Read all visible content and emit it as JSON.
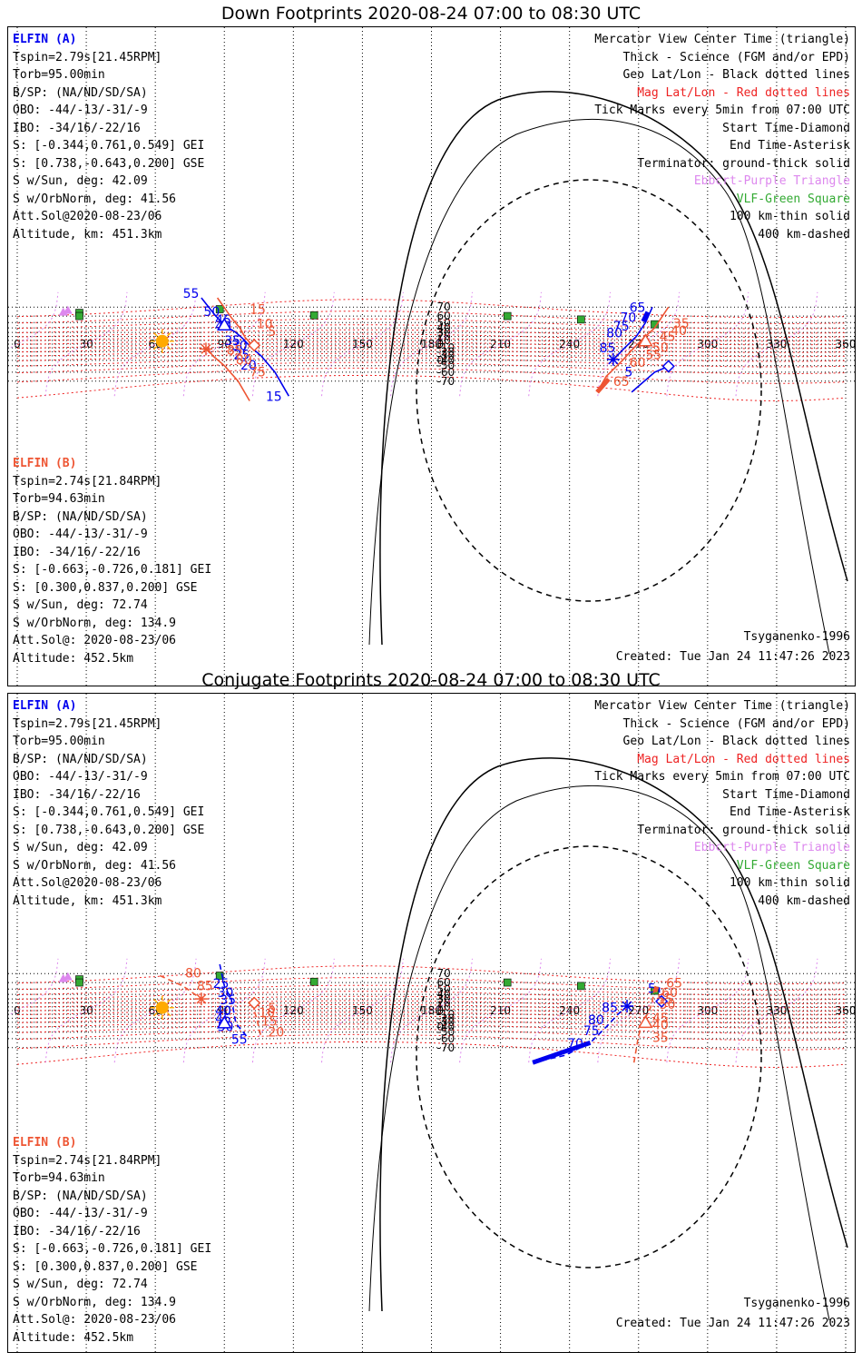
{
  "panels": [
    {
      "title": "Down Footprints 2020-08-24 07:00 to 08:30 UTC",
      "probe_a": {
        "name": "ELFIN (A)",
        "lines": [
          "Tspin=2.79s[21.45RPM]",
          "Torb=95.00min",
          "B/SP: (NA/ND/SD/SA)",
          "OBO: -44/-13/-31/-9",
          "IBO: -34/16/-22/16",
          "S: [-0.344,0.761,0.549] GEI",
          "S: [0.738,-0.643,0.200] GSE",
          "S w/Sun, deg: 42.09",
          "S w/OrbNorm, deg: 41.56",
          "Att.Sol@2020-08-23/06",
          "Altitude, km: 451.3km"
        ]
      },
      "probe_b": {
        "name": "ELFIN (B)",
        "lines": [
          "Tspin=2.74s[21.84RPM]",
          "Torb=94.63min",
          "B/SP: (NA/ND/SD/SA)",
          "OBO: -44/-13/-31/-9",
          "IBO: -34/16/-22/16",
          "S: [-0.663,-0.726,0.181] GEI",
          "S: [0.300,0.837,0.200] GSE",
          "S w/Sun, deg: 72.74",
          "S w/OrbNorm, deg: 134.9",
          "Att.Sol@: 2020-08-23/06",
          "Altitude: 452.5km"
        ]
      },
      "legend": [
        "Mercator View Center Time (triangle)",
        "Thick - Science (FGM and/or EPD)",
        "Geo Lat/Lon - Black dotted lines",
        "Mag Lat/Lon - Red dotted lines",
        "Tick Marks every 5min from 07:00 UTC",
        "Start Time-Diamond",
        "End Time-Asterisk",
        "Terminator: ground-thick solid",
        "Ebbcrt-Purple Triangle",
        "VLF-Green Square",
        "100 km-thin solid",
        "400 km-dashed"
      ],
      "model": "Tsyganenko-1996",
      "created": "Created: Tue Jan 24 11:47:26 2023"
    },
    {
      "title": "Conjugate Footprints 2020-08-24 07:00 to 08:30 UTC",
      "probe_a": {
        "name": "ELFIN (A)",
        "lines": [
          "Tspin=2.79s[21.45RPM]",
          "Torb=95.00min",
          "B/SP: (NA/ND/SD/SA)",
          "OBO: -44/-13/-31/-9",
          "IBO: -34/16/-22/16",
          "S: [-0.344,0.761,0.549] GEI",
          "S: [0.738,-0.643,0.200] GSE",
          "S w/Sun, deg: 42.09",
          "S w/OrbNorm, deg: 41.56",
          "Att.Sol@2020-08-23/06",
          "Altitude, km: 451.3km"
        ]
      },
      "probe_b": {
        "name": "ELFIN (B)",
        "lines": [
          "Tspin=2.74s[21.84RPM]",
          "Torb=94.63min",
          "B/SP: (NA/ND/SD/SA)",
          "OBO: -44/-13/-31/-9",
          "IBO: -34/16/-22/16",
          "S: [-0.663,-0.726,0.181] GEI",
          "S: [0.300,0.837,0.200] GSE",
          "S w/Sun, deg: 72.74",
          "S w/OrbNorm, deg: 134.9",
          "Att.Sol@: 2020-08-23/06",
          "Altitude: 452.5km"
        ]
      },
      "legend": [
        "Mercator View Center Time (triangle)",
        "Thick - Science (FGM and/or EPD)",
        "Geo Lat/Lon - Black dotted lines",
        "Mag Lat/Lon - Red dotted lines",
        "Tick Marks every 5min from 07:00 UTC",
        "Start Time-Diamond",
        "End Time-Asterisk",
        "Terminator: ground-thick solid",
        "Ebbcrt-Purple Triangle",
        "VLF-Green Square",
        "100 km-thin solid",
        "400 km-dashed"
      ],
      "model": "Tsyganenko-1996",
      "created": "Created: Tue Jan 24 11:47:26 2023"
    }
  ],
  "colors": {
    "elfin_a": "#0000ee",
    "elfin_b": "#ee5533",
    "terminator": "#000000",
    "mag_grid": "#ee2222",
    "ebbcrt": "#dd88ee",
    "vlf": "#33aa33",
    "sun": "#ffaa00"
  },
  "chart_data": [
    {
      "type": "scatter",
      "projection": "mercator",
      "title": "Down Footprints 2020-08-24 07:00 to 08:30 UTC",
      "xlim": [
        0,
        360
      ],
      "x_ticks": [
        0,
        30,
        60,
        90,
        120,
        150,
        180,
        210,
        240,
        270,
        300,
        330,
        360
      ],
      "y_ticks": [
        70,
        60,
        50,
        40,
        30,
        20,
        10,
        0,
        -10,
        -20,
        -30,
        -40,
        -50,
        -60,
        -70
      ],
      "sun": {
        "lon": 63,
        "lat": 8
      },
      "vlf_stations": [
        {
          "lon": 88,
          "lat": 68
        },
        {
          "lon": 27,
          "lat": 64
        },
        {
          "lon": 27,
          "lat": 60
        },
        {
          "lon": 129,
          "lat": 61
        },
        {
          "lon": 213,
          "lat": 60
        },
        {
          "lon": 245,
          "lat": 55
        },
        {
          "lon": 277,
          "lat": 47
        }
      ],
      "ebbcrt": [
        {
          "lon": 22,
          "lat": 67
        },
        {
          "lon": 20,
          "lat": 65
        }
      ],
      "series": [
        {
          "name": "ELFIN (A)",
          "line": "solid",
          "track_a": [
            {
              "lon": 80,
              "lat": 77
            },
            {
              "lon": 86,
              "lat": 61
            },
            {
              "lon": 90,
              "lat": 45
            },
            {
              "lon": 95,
              "lat": 30
            },
            {
              "lon": 98,
              "lat": 15
            },
            {
              "lon": 101,
              "lat": -5
            },
            {
              "lon": 106,
              "lat": -30
            },
            {
              "lon": 112,
              "lat": -60
            },
            {
              "lon": 118,
              "lat": -80
            }
          ],
          "track_b": [
            {
              "lon": 283,
              "lat": -51
            },
            {
              "lon": 277,
              "lat": -60
            },
            {
              "lon": 267,
              "lat": -78
            }
          ],
          "track_c": [
            {
              "lon": 259,
              "lat": -38
            },
            {
              "lon": 264,
              "lat": -10
            },
            {
              "lon": 269,
              "lat": 20
            },
            {
              "lon": 273,
              "lat": 50
            },
            {
              "lon": 276,
              "lat": 70
            }
          ],
          "science": [
            {
              "lon": 272,
              "lat": 52
            },
            {
              "lon": 274,
              "lat": 65
            }
          ],
          "tick_labels": [
            {
              "t": "55",
              "lon": 72,
              "lat": 77
            },
            {
              "t": "50",
              "lon": 81,
              "lat": 60
            },
            {
              "t": "45",
              "lon": 86,
              "lat": 47
            },
            {
              "t": "40",
              "lon": 86,
              "lat": 34
            },
            {
              "t": "35",
              "lon": 90,
              "lat": -2
            },
            {
              "t": "30",
              "lon": 93,
              "lat": -16
            },
            {
              "t": "25",
              "lon": 94,
              "lat": -37
            },
            {
              "t": "20",
              "lon": 97,
              "lat": -56
            },
            {
              "t": "15",
              "lon": 108,
              "lat": -82
            },
            {
              "t": "65",
              "lon": 266,
              "lat": 65
            },
            {
              "t": "70",
              "lon": 262,
              "lat": 51
            },
            {
              "t": "75",
              "lon": 259,
              "lat": 34
            },
            {
              "t": "80",
              "lon": 256,
              "lat": 18
            },
            {
              "t": "85",
              "lon": 253,
              "lat": -21
            },
            {
              "t": "5",
              "lon": 264,
              "lat": -65
            }
          ],
          "start": {
            "lon": 283,
            "lat": -51
          },
          "end": {
            "lon": 259,
            "lat": -38
          },
          "center": {
            "lon": 90,
            "lat": 45
          }
        },
        {
          "name": "ELFIN (B)",
          "line": "solid",
          "track_a": [
            {
              "lon": 87,
              "lat": 77
            },
            {
              "lon": 93,
              "lat": 58
            },
            {
              "lon": 97,
              "lat": 38
            },
            {
              "lon": 99,
              "lat": 18
            },
            {
              "lon": 102,
              "lat": -2
            }
          ],
          "track_b": [
            {
              "lon": 83,
              "lat": -14
            },
            {
              "lon": 85,
              "lat": -30
            },
            {
              "lon": 90,
              "lat": -50
            },
            {
              "lon": 96,
              "lat": -70
            },
            {
              "lon": 101,
              "lat": -82
            }
          ],
          "track_c": [
            {
              "lon": 252,
              "lat": -78
            },
            {
              "lon": 256,
              "lat": -65
            },
            {
              "lon": 263,
              "lat": -40
            },
            {
              "lon": 268,
              "lat": -10
            },
            {
              "lon": 272,
              "lat": 15
            },
            {
              "lon": 277,
              "lat": 40
            },
            {
              "lon": 283,
              "lat": 70
            }
          ],
          "science": [
            {
              "lon": 252,
              "lat": -78
            },
            {
              "lon": 257,
              "lat": -68
            }
          ],
          "tick_labels": [
            {
              "t": "15",
              "lon": 101,
              "lat": 63
            },
            {
              "t": "10",
              "lon": 104,
              "lat": 39
            },
            {
              "t": "5",
              "lon": 109,
              "lat": 21
            },
            {
              "t": "85",
              "lon": 91,
              "lat": -27
            },
            {
              "t": "80",
              "lon": 95,
              "lat": -47
            },
            {
              "t": "75",
              "lon": 101,
              "lat": -65
            },
            {
              "t": "35",
              "lon": 285,
              "lat": 40
            },
            {
              "t": "40",
              "lon": 284,
              "lat": 24
            },
            {
              "t": "45",
              "lon": 279,
              "lat": 9
            },
            {
              "t": "50",
              "lon": 276,
              "lat": -20
            },
            {
              "t": "55",
              "lon": 273,
              "lat": -37
            },
            {
              "t": "60",
              "lon": 266,
              "lat": -52
            },
            {
              "t": "65",
              "lon": 259,
              "lat": -74
            }
          ],
          "start": {
            "lon": 103,
            "lat": -3
          },
          "end": {
            "lon": 82,
            "lat": -13
          },
          "center": {
            "lon": 273,
            "lat": 8
          }
        }
      ]
    },
    {
      "type": "scatter",
      "projection": "mercator",
      "title": "Conjugate Footprints 2020-08-24 07:00 to 08:30 UTC",
      "xlim": [
        0,
        360
      ],
      "x_ticks": [
        0,
        30,
        60,
        90,
        120,
        150,
        180,
        210,
        240,
        270,
        300,
        330,
        360
      ],
      "y_ticks": [
        70,
        60,
        50,
        40,
        30,
        20,
        10,
        0,
        -10,
        -20,
        -30,
        -40,
        -50,
        -60,
        -70
      ],
      "sun": {
        "lon": 63,
        "lat": 8
      },
      "vlf_stations": [
        {
          "lon": 88,
          "lat": 68
        },
        {
          "lon": 27,
          "lat": 64
        },
        {
          "lon": 27,
          "lat": 60
        },
        {
          "lon": 129,
          "lat": 61
        },
        {
          "lon": 213,
          "lat": 60
        },
        {
          "lon": 245,
          "lat": 55
        },
        {
          "lon": 277,
          "lat": 47
        }
      ],
      "ebbcrt": [
        {
          "lon": 22,
          "lat": 67
        },
        {
          "lon": 20,
          "lat": 65
        }
      ],
      "series": [
        {
          "name": "ELFIN (A)",
          "line": "dashed",
          "track_a": [
            {
              "lon": 88,
              "lat": 77
            },
            {
              "lon": 90,
              "lat": 55
            },
            {
              "lon": 93,
              "lat": 30
            },
            {
              "lon": 94,
              "lat": 0
            },
            {
              "lon": 95,
              "lat": -32
            },
            {
              "lon": 100,
              "lat": -58
            }
          ],
          "track_b": [
            {
              "lon": 279,
              "lat": 53
            },
            {
              "lon": 279,
              "lat": 37
            },
            {
              "lon": 280,
              "lat": 24
            }
          ],
          "track_c": [
            {
              "lon": 224,
              "lat": -80
            },
            {
              "lon": 238,
              "lat": -76
            },
            {
              "lon": 249,
              "lat": -65
            },
            {
              "lon": 256,
              "lat": -40
            },
            {
              "lon": 261,
              "lat": -10
            },
            {
              "lon": 265,
              "lat": 12
            }
          ],
          "science": [
            {
              "lon": 224,
              "lat": -80
            },
            {
              "lon": 249,
              "lat": -65
            }
          ],
          "tick_labels": [
            {
              "t": "25",
              "lon": 85,
              "lat": 52
            },
            {
              "t": "30",
              "lon": 87,
              "lat": 34
            },
            {
              "t": "35",
              "lon": 88,
              "lat": 17
            },
            {
              "t": "40",
              "lon": 86,
              "lat": -12
            },
            {
              "t": "45",
              "lon": 86,
              "lat": -31
            },
            {
              "t": "50",
              "lon": 87,
              "lat": -48
            },
            {
              "t": "55",
              "lon": 93,
              "lat": -66
            },
            {
              "t": "5",
              "lon": 274,
              "lat": 43
            },
            {
              "t": "85",
              "lon": 254,
              "lat": -4
            },
            {
              "t": "80",
              "lon": 248,
              "lat": -34
            },
            {
              "t": "75",
              "lon": 246,
              "lat": -55
            },
            {
              "t": "70",
              "lon": 239,
              "lat": -70
            }
          ],
          "start": {
            "lon": 280,
            "lat": 24
          },
          "end": {
            "lon": 265,
            "lat": 12
          },
          "center": {
            "lon": 90,
            "lat": -32
          }
        },
        {
          "name": "ELFIN (B)",
          "line": "dashed",
          "track_a": [
            {
              "lon": 62,
              "lat": 68
            },
            {
              "lon": 72,
              "lat": 55
            },
            {
              "lon": 80,
              "lat": 30
            }
          ],
          "track_b": [
            {
              "lon": 103,
              "lat": 20
            },
            {
              "lon": 103,
              "lat": 0
            },
            {
              "lon": 104,
              "lat": -20
            },
            {
              "lon": 106,
              "lat": -58
            }
          ],
          "track_c": [
            {
              "lon": 268,
              "lat": -80
            },
            {
              "lon": 270,
              "lat": -55
            },
            {
              "lon": 272,
              "lat": -30
            },
            {
              "lon": 275,
              "lat": 5
            },
            {
              "lon": 276,
              "lat": 25
            },
            {
              "lon": 277,
              "lat": 53
            }
          ],
          "science": [
            {
              "lon": 277,
              "lat": 45
            },
            {
              "lon": 278,
              "lat": 54
            }
          ],
          "tick_labels": [
            {
              "t": "80",
              "lon": 73,
              "lat": 66
            },
            {
              "t": "85",
              "lon": 78,
              "lat": 48
            },
            {
              "t": "5",
              "lon": 109,
              "lat": -5
            },
            {
              "t": "10",
              "lon": 105,
              "lat": -17
            },
            {
              "t": "15",
              "lon": 106,
              "lat": -37
            },
            {
              "t": "20",
              "lon": 109,
              "lat": -57
            },
            {
              "t": "65",
              "lon": 282,
              "lat": 53
            },
            {
              "t": "60",
              "lon": 280,
              "lat": 34
            },
            {
              "t": "55",
              "lon": 278,
              "lat": 18
            },
            {
              "t": "50",
              "lon": 279,
              "lat": 5
            },
            {
              "t": "45",
              "lon": 276,
              "lat": -30
            },
            {
              "t": "40",
              "lon": 276,
              "lat": -45
            },
            {
              "t": "35",
              "lon": 276,
              "lat": -64
            }
          ],
          "start": {
            "lon": 103,
            "lat": 20
          },
          "end": {
            "lon": 80,
            "lat": 30
          },
          "center": {
            "lon": 273,
            "lat": -31
          }
        }
      ]
    }
  ]
}
